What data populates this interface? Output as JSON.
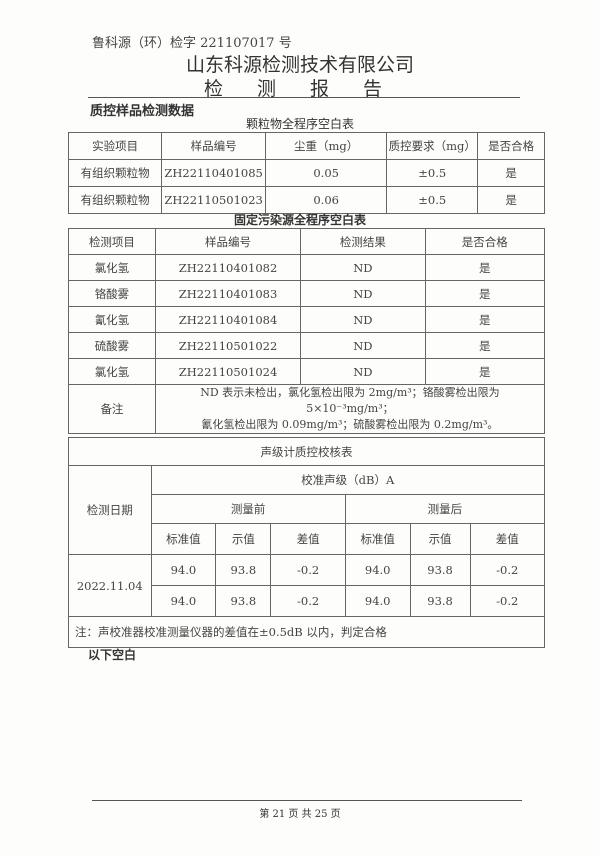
{
  "header": {
    "doc_number": "鲁科源（环）检字 221107017 号",
    "company": "山东科源检测技术有限公司",
    "report_title": "检 测 报 告"
  },
  "section_title": "质控样品检测数据",
  "table1": {
    "caption": "颗粒物全程序空白表",
    "columns": [
      "实验项目",
      "样品编号",
      "尘重（mg）",
      "质控要求（mg）",
      "是否合格"
    ],
    "rows": [
      [
        "有组织颗粒物",
        "ZH22110401085",
        "0.05",
        "±0.5",
        "是"
      ],
      [
        "有组织颗粒物",
        "ZH22110501023",
        "0.06",
        "±0.5",
        "是"
      ]
    ]
  },
  "table2": {
    "caption": "固定污染源全程序空白表",
    "columns": [
      "检测项目",
      "样品编号",
      "检测结果",
      "是否合格"
    ],
    "rows": [
      [
        "氯化氢",
        "ZH22110401082",
        "ND",
        "是"
      ],
      [
        "铬酸雾",
        "ZH22110401083",
        "ND",
        "是"
      ],
      [
        "氰化氢",
        "ZH22110401084",
        "ND",
        "是"
      ],
      [
        "硫酸雾",
        "ZH22110501022",
        "ND",
        "是"
      ],
      [
        "氯化氢",
        "ZH22110501024",
        "ND",
        "是"
      ]
    ],
    "remark_label": "备注",
    "remark_line1": "ND 表示未检出，氯化氢检出限为 2mg/m³；铬酸雾检出限为 5×10⁻³mg/m³；",
    "remark_line2": "氰化氢检出限为 0.09mg/m³；硫酸雾检出限为 0.2mg/m³。"
  },
  "table3": {
    "caption": "声级计质控校核表",
    "date_label": "检测日期",
    "calib_label": "校准声级（dB）A",
    "before": "测量前",
    "after": "测量后",
    "sub": [
      "标准值",
      "示值",
      "差值",
      "标准值",
      "示值",
      "差值"
    ],
    "date": "2022.11.04",
    "rows": [
      [
        "94.0",
        "93.8",
        "-0.2",
        "94.0",
        "93.8",
        "-0.2"
      ],
      [
        "94.0",
        "93.8",
        "-0.2",
        "94.0",
        "93.8",
        "-0.2"
      ]
    ],
    "note": "注：声校准器校准测量仪器的差值在±0.5dB 以内，判定合格"
  },
  "blank_note": "以下空白",
  "footer": "第 21 页 共 25 页"
}
